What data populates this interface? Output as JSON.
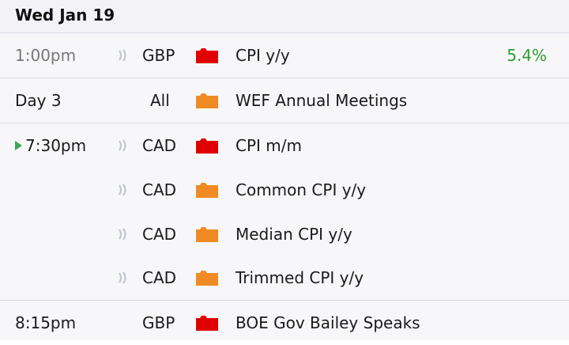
{
  "day": {
    "title": "Wed Jan 19"
  },
  "rows": [
    {
      "time": "1:00pm",
      "currency": "GBP",
      "event": "CPI y/y",
      "actual": "5.4%",
      "impact": "high",
      "impact_color": "#e00000",
      "speaker": true,
      "past": true
    },
    {
      "time": "Day 3",
      "currency": "All",
      "event": "WEF Annual Meetings",
      "actual": "",
      "impact": "medium",
      "impact_color": "#f08a24",
      "speaker": false,
      "past": false
    },
    {
      "time": "7:30pm",
      "currency": "CAD",
      "event": "CPI m/m",
      "actual": "",
      "impact": "high",
      "impact_color": "#e00000",
      "speaker": true,
      "past": false,
      "next_up": true
    },
    {
      "time": "",
      "currency": "CAD",
      "event": "Common CPI y/y",
      "actual": "",
      "impact": "medium",
      "impact_color": "#f08a24",
      "speaker": true,
      "past": false
    },
    {
      "time": "",
      "currency": "CAD",
      "event": "Median CPI y/y",
      "actual": "",
      "impact": "medium",
      "impact_color": "#f08a24",
      "speaker": true,
      "past": false
    },
    {
      "time": "",
      "currency": "CAD",
      "event": "Trimmed CPI y/y",
      "actual": "",
      "impact": "medium",
      "impact_color": "#f08a24",
      "speaker": true,
      "past": false
    },
    {
      "time": "8:15pm",
      "currency": "GBP",
      "event": "BOE Gov Bailey Speaks",
      "actual": "",
      "impact": "high",
      "impact_color": "#e00000",
      "speaker": false,
      "past": false
    }
  ],
  "icons": {
    "speaker": "speaker-icon",
    "impact": "impact-folder-icon",
    "next": "next-event-arrow-icon"
  },
  "colors": {
    "actual_positive": "#2f9e2f",
    "high_impact": "#e00000",
    "medium_impact": "#f08a24",
    "header_bg": "#f3f3f7"
  }
}
